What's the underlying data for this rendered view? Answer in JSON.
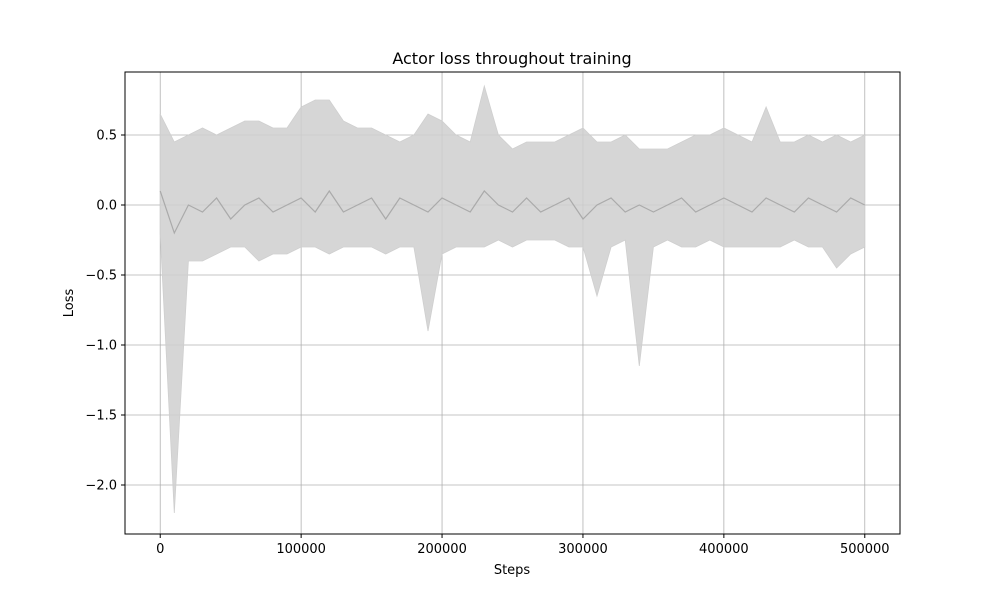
{
  "chart_data": {
    "type": "line",
    "title": "Actor loss throughout training",
    "xlabel": "Steps",
    "ylabel": "Loss",
    "xlim": [
      -25000,
      525000
    ],
    "ylim": [
      -2.35,
      0.95
    ],
    "xticks": [
      0,
      100000,
      200000,
      300000,
      400000,
      500000
    ],
    "xtick_labels": [
      "0",
      "100000",
      "200000",
      "300000",
      "400000",
      "500000"
    ],
    "yticks": [
      -2.0,
      -1.5,
      -1.0,
      -0.5,
      0.0,
      0.5
    ],
    "ytick_labels": [
      "−2.0",
      "−1.5",
      "−1.0",
      "−0.5",
      "0.0",
      "0.5"
    ],
    "grid": true,
    "legend": "none",
    "colors": {
      "line": "#aaaaaa",
      "band": "#cfcfcf",
      "grid": "#b0b0b0",
      "axes": "#000000"
    },
    "series": [
      {
        "x": [
          0,
          10000,
          20000,
          30000,
          40000,
          50000,
          60000,
          70000,
          80000,
          90000,
          100000,
          110000,
          120000,
          130000,
          140000,
          150000,
          160000,
          170000,
          180000,
          190000,
          200000,
          210000,
          220000,
          230000,
          240000,
          250000,
          260000,
          270000,
          280000,
          290000,
          300000,
          310000,
          320000,
          330000,
          340000,
          350000,
          360000,
          370000,
          380000,
          390000,
          400000,
          410000,
          420000,
          430000,
          440000,
          450000,
          460000,
          470000,
          480000,
          490000,
          500000
        ],
        "mean": [
          0.1,
          -0.2,
          0.0,
          -0.05,
          0.05,
          -0.1,
          0.0,
          0.05,
          -0.05,
          0.0,
          0.05,
          -0.05,
          0.1,
          -0.05,
          0.0,
          0.05,
          -0.1,
          0.05,
          0.0,
          -0.05,
          0.05,
          0.0,
          -0.05,
          0.1,
          0.0,
          -0.05,
          0.05,
          -0.05,
          0.0,
          0.05,
          -0.1,
          0.0,
          0.05,
          -0.05,
          0.0,
          -0.05,
          0.0,
          0.05,
          -0.05,
          0.0,
          0.05,
          0.0,
          -0.05,
          0.05,
          0.0,
          -0.05,
          0.05,
          0.0,
          -0.05,
          0.05,
          0.0
        ],
        "lower": [
          -0.2,
          -2.2,
          -0.4,
          -0.4,
          -0.35,
          -0.3,
          -0.3,
          -0.4,
          -0.35,
          -0.35,
          -0.3,
          -0.3,
          -0.35,
          -0.3,
          -0.3,
          -0.3,
          -0.35,
          -0.3,
          -0.3,
          -0.9,
          -0.35,
          -0.3,
          -0.3,
          -0.3,
          -0.25,
          -0.3,
          -0.25,
          -0.25,
          -0.25,
          -0.3,
          -0.3,
          -0.65,
          -0.3,
          -0.25,
          -1.15,
          -0.3,
          -0.25,
          -0.3,
          -0.3,
          -0.25,
          -0.3,
          -0.3,
          -0.3,
          -0.3,
          -0.3,
          -0.25,
          -0.3,
          -0.3,
          -0.45,
          -0.35,
          -0.3
        ],
        "upper": [
          0.65,
          0.45,
          0.5,
          0.55,
          0.5,
          0.55,
          0.6,
          0.6,
          0.55,
          0.55,
          0.7,
          0.75,
          0.75,
          0.6,
          0.55,
          0.55,
          0.5,
          0.45,
          0.5,
          0.65,
          0.6,
          0.5,
          0.45,
          0.85,
          0.5,
          0.4,
          0.45,
          0.45,
          0.45,
          0.5,
          0.55,
          0.45,
          0.45,
          0.5,
          0.4,
          0.4,
          0.4,
          0.45,
          0.5,
          0.5,
          0.55,
          0.5,
          0.45,
          0.7,
          0.45,
          0.45,
          0.5,
          0.45,
          0.5,
          0.45,
          0.5
        ]
      }
    ]
  }
}
